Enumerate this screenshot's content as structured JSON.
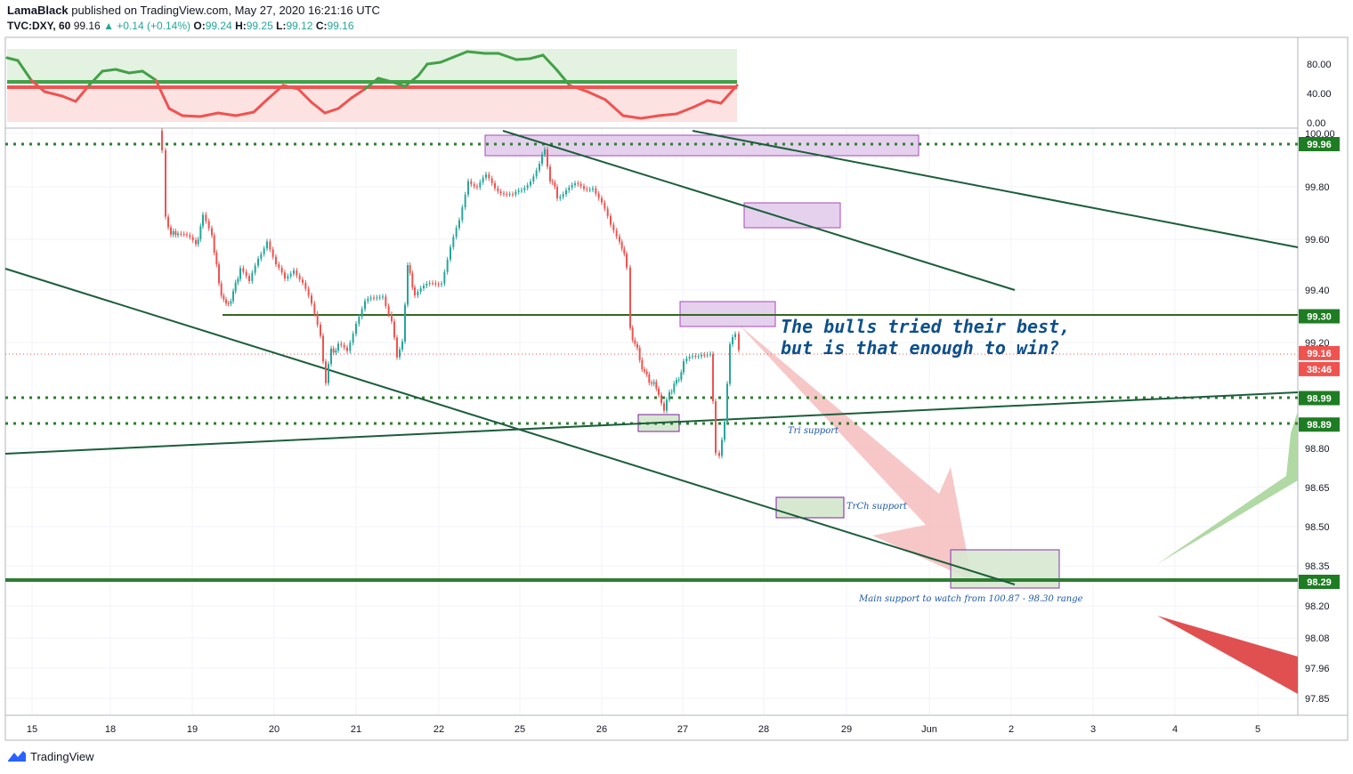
{
  "header": {
    "author": "LamaBlack",
    "published": " published on TradingView.com, May 27, 2020 16:21:16 UTC",
    "symbol": "TVC:DXY, 60",
    "last": "99.16",
    "change": "▲ +0.14 (+0.14%)",
    "o_label": "O:",
    "o_value": "99.24",
    "h_label": "H:",
    "h_value": "99.25",
    "l_label": "L:",
    "l_value": "99.12",
    "c_label": "C:",
    "c_value": "99.16"
  },
  "footer": {
    "brand": "TradingView"
  },
  "annotations": {
    "big_line1": "The bulls tried their best,",
    "big_line2": "but is that enough to win?",
    "tri_support": "Tri support",
    "trch_support": "TrCh support",
    "main_support": "Main support to watch from 100.87 - 98.30 range"
  },
  "chart_data": {
    "type": "candlestick",
    "symbol": "TVC:DXY",
    "interval": "60",
    "x_ticks": [
      "15",
      "18",
      "19",
      "20",
      "21",
      "22",
      "25",
      "26",
      "27",
      "28",
      "29",
      "Jun",
      "2",
      "3",
      "4",
      "5"
    ],
    "y_ticks": [
      "100.00",
      "99.80",
      "99.60",
      "99.40",
      "99.20",
      "98.80",
      "98.65",
      "98.50",
      "98.35",
      "98.20",
      "98.08",
      "97.96",
      "97.85"
    ],
    "ylim": [
      97.8,
      100.0
    ],
    "grid": true,
    "last_price": 99.16,
    "countdown": "38:46",
    "price_badges": [
      {
        "label": "99.96",
        "value": 99.96,
        "color": "#1e7d22"
      },
      {
        "label": "99.30",
        "value": 99.3,
        "color": "#1e7d22"
      },
      {
        "label": "99.16",
        "value": 99.16,
        "color": "#ef5350"
      },
      {
        "label": "98.99",
        "value": 98.99,
        "color": "#1e7d22"
      },
      {
        "label": "98.89",
        "value": 98.89,
        "color": "#1e7d22"
      },
      {
        "label": "98.29",
        "value": 98.29,
        "color": "#1e7d22"
      }
    ],
    "oscillator": {
      "y_ticks": [
        "80.00",
        "40.00",
        "0.00"
      ],
      "ylim": [
        0,
        100
      ],
      "up_color": "#43a047",
      "down_color": "#ef5350"
    },
    "colors": {
      "up": "#26a69a",
      "down": "#ef5350",
      "level": "#2e7d32",
      "trend": "#1b5e3b"
    }
  }
}
